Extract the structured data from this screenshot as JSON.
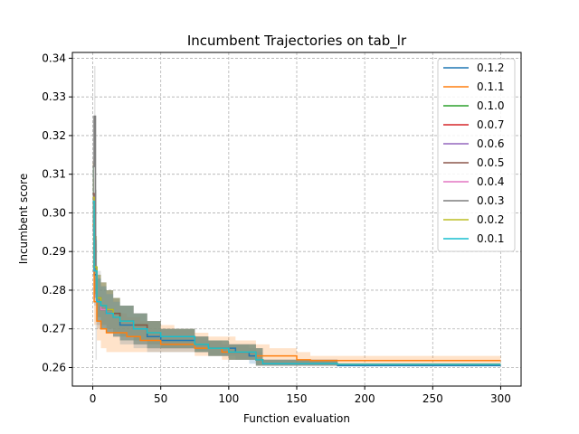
{
  "chart_data": {
    "type": "line",
    "title": "Incumbent Trajectories on tab_lr",
    "xlabel": "Function evaluation",
    "ylabel": "Incumbent score",
    "xlim": [
      -15,
      315
    ],
    "ylim": [
      0.2552,
      0.3415
    ],
    "xticks": [
      0,
      50,
      100,
      150,
      200,
      250,
      300
    ],
    "yticks": [
      0.26,
      0.27,
      0.28,
      0.29,
      0.3,
      0.31,
      0.32,
      0.33,
      0.34
    ],
    "ytick_labels": [
      "0.26",
      "0.27",
      "0.28",
      "0.29",
      "0.30",
      "0.31",
      "0.32",
      "0.33",
      "0.34"
    ],
    "grid": true,
    "grid_style": "dashed",
    "legend_position": "top-right",
    "series": [
      {
        "name": "0.1.2",
        "color": "#1f77b4",
        "band_color": "#1f77b4",
        "x": [
          0,
          1,
          3,
          6,
          10,
          15,
          20,
          30,
          40,
          50,
          75,
          85,
          95,
          105,
          115,
          120,
          125,
          155,
          180,
          200,
          300
        ],
        "y": [
          0.303,
          0.284,
          0.277,
          0.275,
          0.274,
          0.273,
          0.271,
          0.27,
          0.268,
          0.267,
          0.266,
          0.265,
          0.265,
          0.264,
          0.263,
          0.262,
          0.261,
          0.261,
          0.2605,
          0.2605,
          0.2605
        ],
        "lo": [
          0.294,
          0.276,
          0.271,
          0.27,
          0.269,
          0.268,
          0.266,
          0.265,
          0.264,
          0.264,
          0.264,
          0.263,
          0.263,
          0.262,
          0.261,
          0.2605,
          0.2605,
          0.2605,
          0.2605,
          0.2605,
          0.2605
        ],
        "hi": [
          0.312,
          0.292,
          0.283,
          0.281,
          0.28,
          0.278,
          0.276,
          0.274,
          0.272,
          0.27,
          0.268,
          0.267,
          0.266,
          0.266,
          0.265,
          0.264,
          0.262,
          0.262,
          0.2605,
          0.2605,
          0.2605
        ]
      },
      {
        "name": "0.1.1",
        "color": "#ff7f0e",
        "band_color": "#ff7f0e",
        "x": [
          0,
          1,
          3,
          6,
          10,
          15,
          25,
          35,
          50,
          60,
          75,
          85,
          95,
          105,
          120,
          130,
          150,
          160,
          175,
          200,
          300
        ],
        "y": [
          0.297,
          0.277,
          0.272,
          0.27,
          0.269,
          0.269,
          0.268,
          0.267,
          0.266,
          0.266,
          0.265,
          0.265,
          0.264,
          0.264,
          0.263,
          0.263,
          0.262,
          0.2618,
          0.2618,
          0.2618,
          0.2618
        ],
        "lo": [
          0.285,
          0.271,
          0.267,
          0.265,
          0.264,
          0.264,
          0.264,
          0.264,
          0.264,
          0.264,
          0.263,
          0.263,
          0.262,
          0.262,
          0.261,
          0.261,
          0.261,
          0.261,
          0.261,
          0.261,
          0.261
        ],
        "hi": [
          0.309,
          0.283,
          0.278,
          0.276,
          0.275,
          0.274,
          0.273,
          0.272,
          0.271,
          0.27,
          0.269,
          0.268,
          0.268,
          0.267,
          0.266,
          0.265,
          0.264,
          0.263,
          0.263,
          0.263,
          0.263
        ]
      },
      {
        "name": "0.1.0",
        "color": "#2ca02c",
        "band_color": "#2ca02c",
        "x": [
          0,
          1,
          3,
          6,
          10,
          15,
          20,
          30,
          40,
          50,
          75,
          85,
          100,
          120,
          125,
          180,
          300
        ],
        "y": [
          0.304,
          0.286,
          0.278,
          0.276,
          0.275,
          0.274,
          0.272,
          0.271,
          0.269,
          0.268,
          0.266,
          0.265,
          0.264,
          0.262,
          0.261,
          0.2608,
          0.2608
        ],
        "lo": [
          0.296,
          0.279,
          0.273,
          0.271,
          0.27,
          0.269,
          0.268,
          0.267,
          0.266,
          0.265,
          0.264,
          0.263,
          0.262,
          0.2605,
          0.2605,
          0.2605,
          0.2605
        ],
        "hi": [
          0.313,
          0.294,
          0.284,
          0.282,
          0.28,
          0.278,
          0.276,
          0.274,
          0.272,
          0.27,
          0.268,
          0.267,
          0.266,
          0.265,
          0.262,
          0.2608,
          0.2608
        ]
      },
      {
        "name": "0.0.7",
        "color": "#d62728",
        "band_color": "#d62728",
        "x": [
          0,
          1,
          3,
          6,
          10,
          15,
          20,
          30,
          40,
          50,
          75,
          85,
          100,
          120,
          125,
          180,
          300
        ],
        "y": [
          0.303,
          0.285,
          0.277,
          0.275,
          0.274,
          0.273,
          0.272,
          0.27,
          0.269,
          0.268,
          0.266,
          0.265,
          0.264,
          0.262,
          0.261,
          0.2608,
          0.2608
        ],
        "lo": [
          0.295,
          0.278,
          0.272,
          0.27,
          0.269,
          0.268,
          0.267,
          0.266,
          0.265,
          0.265,
          0.264,
          0.263,
          0.262,
          0.2605,
          0.2605,
          0.2605,
          0.2605
        ],
        "hi": [
          0.312,
          0.293,
          0.283,
          0.281,
          0.279,
          0.277,
          0.276,
          0.274,
          0.272,
          0.27,
          0.268,
          0.267,
          0.266,
          0.265,
          0.262,
          0.2608,
          0.2608
        ]
      },
      {
        "name": "0.0.6",
        "color": "#9467bd",
        "band_color": "#9467bd",
        "x": [
          0,
          1,
          3,
          6,
          10,
          15,
          20,
          30,
          40,
          50,
          75,
          85,
          100,
          120,
          125,
          180,
          300
        ],
        "y": [
          0.304,
          0.285,
          0.278,
          0.276,
          0.275,
          0.273,
          0.272,
          0.27,
          0.269,
          0.268,
          0.266,
          0.265,
          0.264,
          0.262,
          0.261,
          0.2608,
          0.2608
        ],
        "lo": [
          0.296,
          0.278,
          0.272,
          0.27,
          0.269,
          0.268,
          0.267,
          0.266,
          0.265,
          0.265,
          0.264,
          0.263,
          0.262,
          0.2605,
          0.2605,
          0.2605,
          0.2605
        ],
        "hi": [
          0.313,
          0.293,
          0.284,
          0.282,
          0.28,
          0.278,
          0.276,
          0.274,
          0.272,
          0.27,
          0.268,
          0.267,
          0.266,
          0.265,
          0.262,
          0.2608,
          0.2608
        ]
      },
      {
        "name": "0.0.5",
        "color": "#8c564b",
        "band_color": "#8c564b",
        "x": [
          0,
          1,
          3,
          6,
          10,
          15,
          20,
          30,
          40,
          50,
          75,
          85,
          100,
          120,
          125,
          180,
          300
        ],
        "y": [
          0.305,
          0.286,
          0.278,
          0.276,
          0.275,
          0.274,
          0.272,
          0.271,
          0.269,
          0.268,
          0.266,
          0.265,
          0.264,
          0.262,
          0.261,
          0.2608,
          0.2608
        ],
        "lo": [
          0.296,
          0.279,
          0.273,
          0.271,
          0.27,
          0.269,
          0.268,
          0.267,
          0.266,
          0.265,
          0.264,
          0.263,
          0.262,
          0.2605,
          0.2605,
          0.2605,
          0.2605
        ],
        "hi": [
          0.314,
          0.294,
          0.284,
          0.282,
          0.28,
          0.278,
          0.276,
          0.274,
          0.272,
          0.27,
          0.268,
          0.267,
          0.266,
          0.265,
          0.262,
          0.2608,
          0.2608
        ]
      },
      {
        "name": "0.0.4",
        "color": "#e377c2",
        "band_color": "#e377c2",
        "x": [
          0,
          1,
          3,
          6,
          10,
          15,
          20,
          30,
          40,
          50,
          75,
          85,
          100,
          120,
          125,
          180,
          300
        ],
        "y": [
          0.304,
          0.285,
          0.277,
          0.275,
          0.274,
          0.273,
          0.272,
          0.27,
          0.269,
          0.268,
          0.266,
          0.265,
          0.264,
          0.262,
          0.261,
          0.2608,
          0.2608
        ],
        "lo": [
          0.295,
          0.278,
          0.272,
          0.27,
          0.269,
          0.268,
          0.267,
          0.266,
          0.265,
          0.265,
          0.264,
          0.263,
          0.262,
          0.2605,
          0.2605,
          0.2605,
          0.2605
        ],
        "hi": [
          0.313,
          0.293,
          0.283,
          0.281,
          0.279,
          0.277,
          0.276,
          0.274,
          0.272,
          0.27,
          0.268,
          0.267,
          0.266,
          0.265,
          0.262,
          0.2608,
          0.2608
        ]
      },
      {
        "name": "0.0.3",
        "color": "#7f7f7f",
        "band_color": "#7f7f7f",
        "x": [
          0,
          1,
          2,
          3,
          6,
          10,
          15,
          20,
          30,
          40,
          50,
          75,
          85,
          100,
          120,
          125,
          180,
          300
        ],
        "y": [
          0.312,
          0.325,
          0.285,
          0.278,
          0.276,
          0.275,
          0.273,
          0.272,
          0.27,
          0.269,
          0.268,
          0.266,
          0.265,
          0.264,
          0.262,
          0.261,
          0.2608,
          0.2608
        ],
        "lo": [
          0.3,
          0.3,
          0.262,
          0.27,
          0.27,
          0.269,
          0.268,
          0.267,
          0.266,
          0.265,
          0.265,
          0.264,
          0.263,
          0.262,
          0.2605,
          0.2605,
          0.2605,
          0.2605
        ],
        "hi": [
          0.325,
          0.338,
          0.306,
          0.285,
          0.282,
          0.28,
          0.278,
          0.276,
          0.274,
          0.272,
          0.27,
          0.268,
          0.267,
          0.266,
          0.265,
          0.262,
          0.2608,
          0.2608
        ]
      },
      {
        "name": "0.0.2",
        "color": "#bcbd22",
        "band_color": "#bcbd22",
        "x": [
          0,
          1,
          3,
          6,
          10,
          15,
          20,
          30,
          40,
          50,
          75,
          85,
          100,
          120,
          125,
          180,
          300
        ],
        "y": [
          0.304,
          0.286,
          0.278,
          0.276,
          0.275,
          0.273,
          0.272,
          0.27,
          0.269,
          0.268,
          0.266,
          0.265,
          0.264,
          0.262,
          0.261,
          0.2608,
          0.2608
        ],
        "lo": [
          0.296,
          0.279,
          0.272,
          0.27,
          0.269,
          0.268,
          0.267,
          0.266,
          0.265,
          0.265,
          0.264,
          0.263,
          0.262,
          0.2605,
          0.2605,
          0.2605,
          0.2605
        ],
        "hi": [
          0.313,
          0.294,
          0.284,
          0.282,
          0.28,
          0.278,
          0.276,
          0.274,
          0.272,
          0.27,
          0.268,
          0.267,
          0.266,
          0.265,
          0.262,
          0.2608,
          0.2608
        ]
      },
      {
        "name": "0.0.1",
        "color": "#17becf",
        "band_color": "#17becf",
        "x": [
          0,
          1,
          3,
          6,
          10,
          15,
          20,
          30,
          40,
          50,
          75,
          85,
          100,
          120,
          125,
          180,
          300
        ],
        "y": [
          0.303,
          0.285,
          0.277,
          0.276,
          0.274,
          0.273,
          0.272,
          0.27,
          0.269,
          0.268,
          0.266,
          0.265,
          0.264,
          0.262,
          0.261,
          0.2608,
          0.2608
        ],
        "lo": [
          0.295,
          0.278,
          0.272,
          0.27,
          0.269,
          0.268,
          0.267,
          0.266,
          0.265,
          0.265,
          0.264,
          0.263,
          0.262,
          0.2605,
          0.2605,
          0.2605,
          0.2605
        ],
        "hi": [
          0.312,
          0.293,
          0.283,
          0.281,
          0.279,
          0.277,
          0.276,
          0.274,
          0.272,
          0.27,
          0.268,
          0.267,
          0.266,
          0.265,
          0.262,
          0.2608,
          0.2608
        ]
      }
    ]
  }
}
